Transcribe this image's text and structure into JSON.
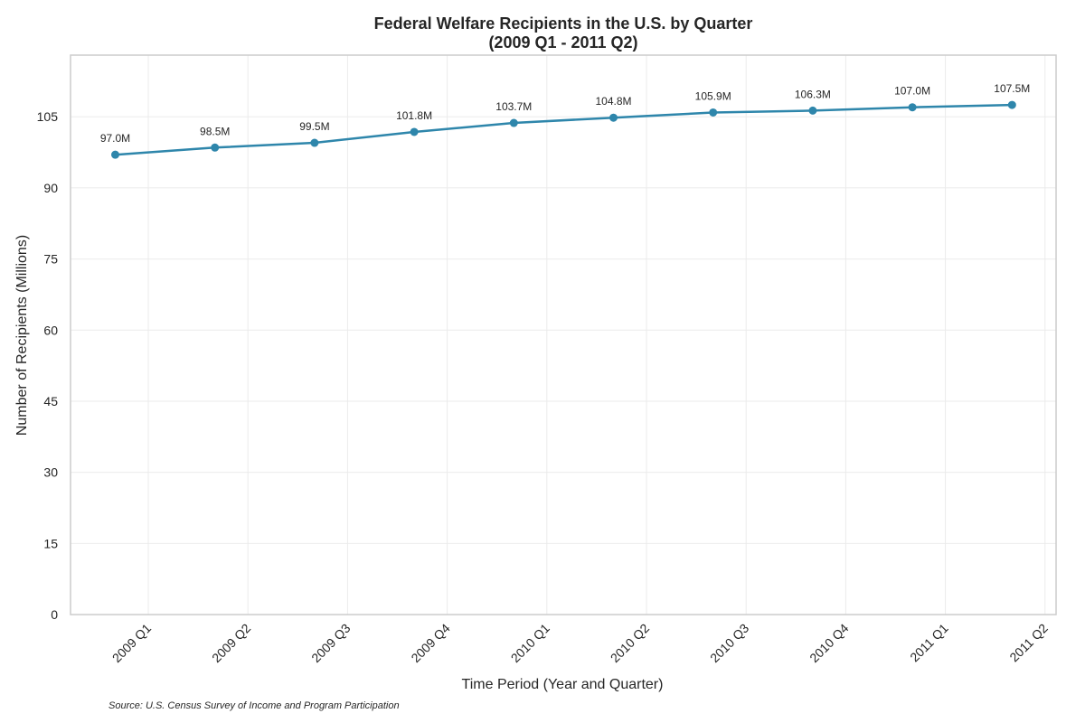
{
  "chart_data": {
    "type": "line",
    "title_line1": "Federal Welfare Recipients in the U.S. by Quarter",
    "title_line2": "(2009 Q1 - 2011 Q2)",
    "xlabel": "Time Period (Year and Quarter)",
    "ylabel": "Number of Recipients (Millions)",
    "categories": [
      "2009 Q1",
      "2009 Q2",
      "2009 Q3",
      "2009 Q4",
      "2010 Q1",
      "2010 Q2",
      "2010 Q3",
      "2010 Q4",
      "2011 Q1",
      "2011 Q2"
    ],
    "values": [
      97.0,
      98.5,
      99.5,
      101.8,
      103.7,
      104.8,
      105.9,
      106.3,
      107.0,
      107.5
    ],
    "data_labels": [
      "97.0M",
      "98.5M",
      "99.5M",
      "101.8M",
      "103.7M",
      "104.8M",
      "105.9M",
      "106.3M",
      "107.0M",
      "107.5M"
    ],
    "ylim": [
      0,
      118
    ],
    "yticks": [
      0,
      15,
      30,
      45,
      60,
      75,
      90,
      105
    ],
    "grid": true,
    "source": "Source: U.S. Census Survey of Income and Program Participation",
    "colors": {
      "line": "#2e86ab",
      "grid": "#ebebeb",
      "axes": "#cccccc"
    }
  }
}
